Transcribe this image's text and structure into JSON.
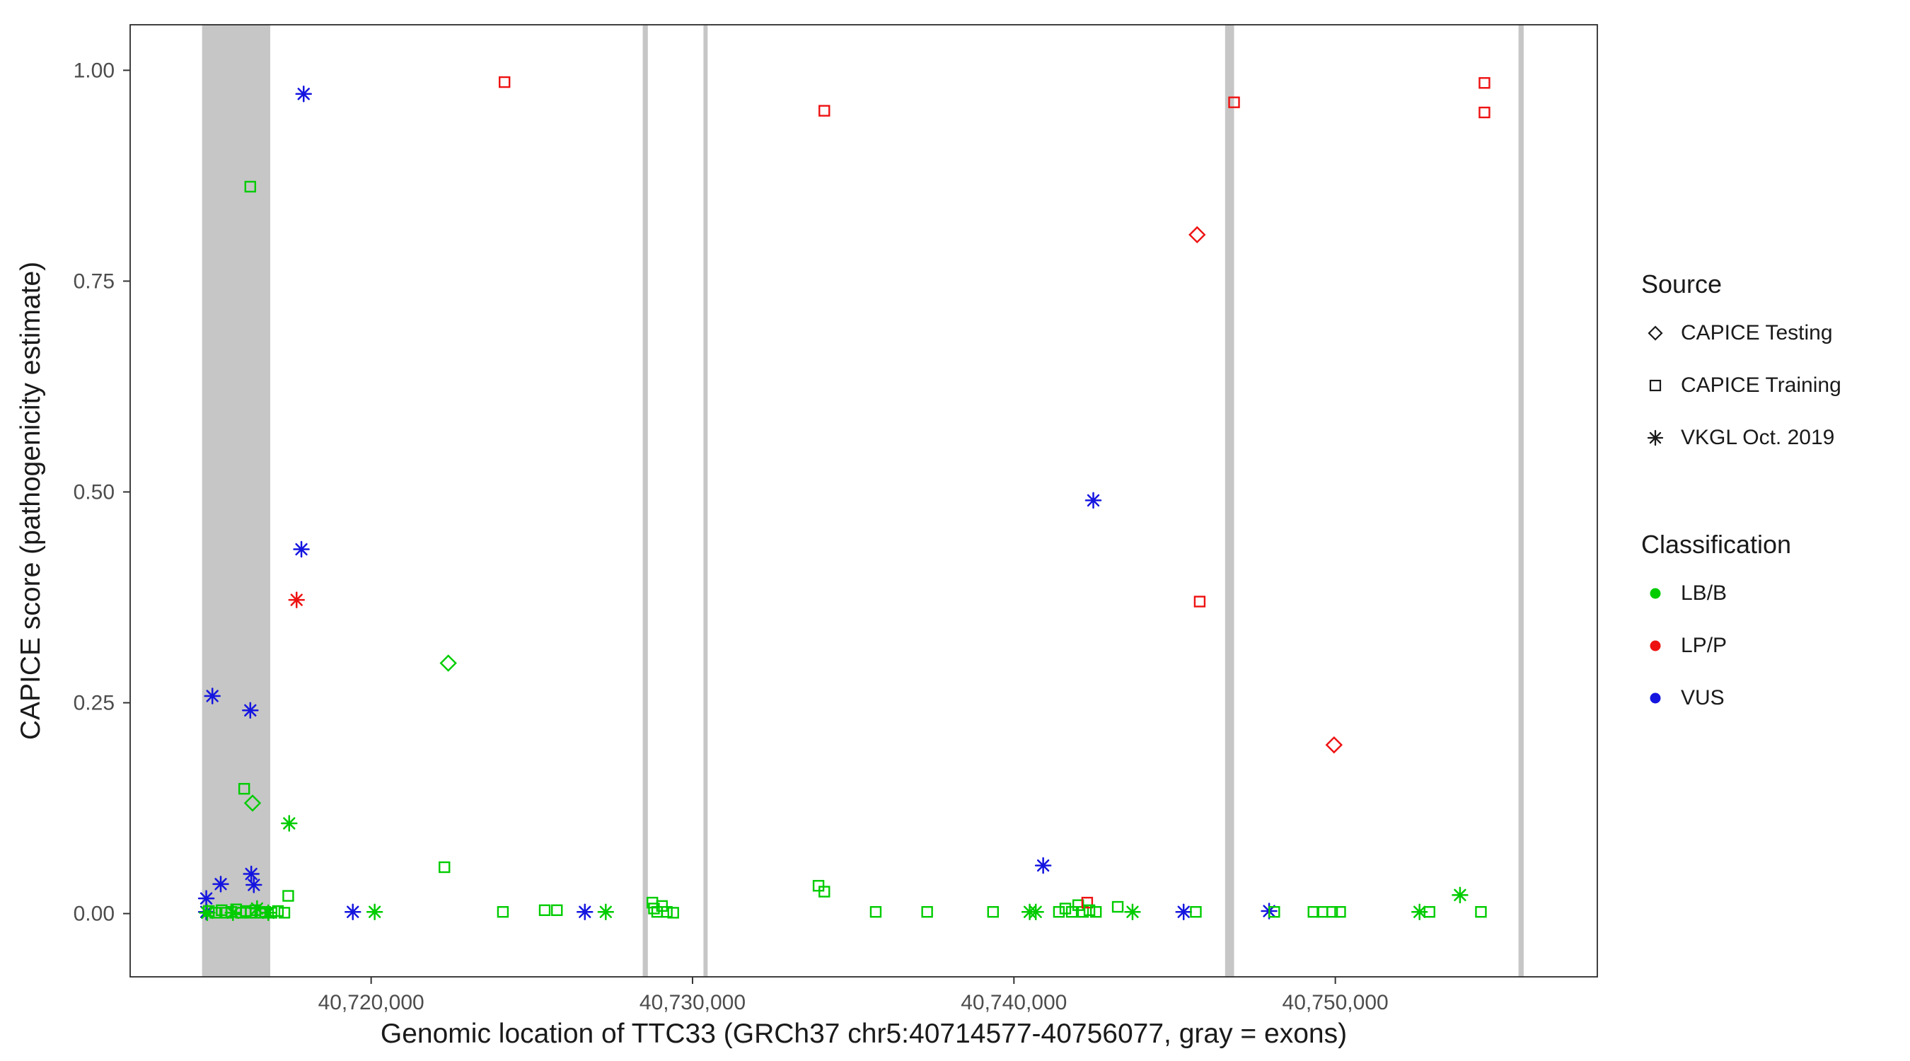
{
  "chart_data": {
    "type": "scatter",
    "title": "",
    "xlabel": "Genomic location of TTC33 (GRCh37 chr5:40714577-40756077, gray = exons)",
    "ylabel": "CAPICE score (pathogenicity estimate)",
    "x_domain": [
      40712502,
      40758152
    ],
    "y_domain": [
      -0.075,
      1.054
    ],
    "x_ticks": [
      {
        "v": 40720000,
        "label": "40,720,000"
      },
      {
        "v": 40730000,
        "label": "40,730,000"
      },
      {
        "v": 40740000,
        "label": "40,740,000"
      },
      {
        "v": 40750000,
        "label": "40,750,000"
      }
    ],
    "y_ticks": [
      {
        "v": 0.0,
        "label": "0.00"
      },
      {
        "v": 0.25,
        "label": "0.25"
      },
      {
        "v": 0.5,
        "label": "0.50"
      },
      {
        "v": 0.75,
        "label": "0.75"
      },
      {
        "v": 1.0,
        "label": "1.00"
      }
    ],
    "grid": false,
    "exon_color": "#c6c6c6",
    "exons_gray": [
      [
        40714740,
        40716860
      ],
      [
        40728450,
        40728610
      ],
      [
        40730340,
        40730470
      ],
      [
        40746570,
        40746850
      ],
      [
        40755700,
        40755860
      ]
    ],
    "classification_colors": {
      "LB/B": "#00cc00",
      "LP/P": "#ee1111",
      "VUS": "#1515e0"
    },
    "source_shapes": {
      "CAPICE Testing": "diamond",
      "CAPICE Training": "square",
      "VKGL Oct. 2019": "asterisk"
    },
    "legend": {
      "source_title": "Source",
      "source_items": [
        {
          "label": "CAPICE Testing",
          "shape": "diamond"
        },
        {
          "label": "CAPICE Training",
          "shape": "square"
        },
        {
          "label": "VKGL Oct. 2019",
          "shape": "asterisk"
        }
      ],
      "classification_title": "Classification",
      "classification_items": [
        {
          "label": "LB/B",
          "color": "#00cc00"
        },
        {
          "label": "LP/P",
          "color": "#ee1111"
        },
        {
          "label": "VUS",
          "color": "#1515e0"
        }
      ],
      "position": "right"
    },
    "points": [
      {
        "x": 40717900,
        "y": 0.972,
        "cls": "VUS",
        "src": "VKGL Oct. 2019"
      },
      {
        "x": 40724150,
        "y": 0.986,
        "cls": "LP/P",
        "src": "CAPICE Training"
      },
      {
        "x": 40734100,
        "y": 0.952,
        "cls": "LP/P",
        "src": "CAPICE Training"
      },
      {
        "x": 40746850,
        "y": 0.962,
        "cls": "LP/P",
        "src": "CAPICE Training"
      },
      {
        "x": 40754640,
        "y": 0.985,
        "cls": "LP/P",
        "src": "CAPICE Training"
      },
      {
        "x": 40754640,
        "y": 0.95,
        "cls": "LP/P",
        "src": "CAPICE Training"
      },
      {
        "x": 40745700,
        "y": 0.805,
        "cls": "LP/P",
        "src": "CAPICE Testing"
      },
      {
        "x": 40716240,
        "y": 0.862,
        "cls": "LB/B",
        "src": "CAPICE Training"
      },
      {
        "x": 40742470,
        "y": 0.49,
        "cls": "VUS",
        "src": "VKGL Oct. 2019"
      },
      {
        "x": 40717830,
        "y": 0.432,
        "cls": "VUS",
        "src": "VKGL Oct. 2019"
      },
      {
        "x": 40717680,
        "y": 0.372,
        "cls": "LP/P",
        "src": "VKGL Oct. 2019"
      },
      {
        "x": 40745780,
        "y": 0.37,
        "cls": "LP/P",
        "src": "CAPICE Training"
      },
      {
        "x": 40722400,
        "y": 0.297,
        "cls": "LB/B",
        "src": "CAPICE Testing"
      },
      {
        "x": 40715060,
        "y": 0.258,
        "cls": "VUS",
        "src": "VKGL Oct. 2019"
      },
      {
        "x": 40716240,
        "y": 0.241,
        "cls": "VUS",
        "src": "VKGL Oct. 2019"
      },
      {
        "x": 40749960,
        "y": 0.2,
        "cls": "LP/P",
        "src": "CAPICE Testing"
      },
      {
        "x": 40716050,
        "y": 0.148,
        "cls": "LB/B",
        "src": "CAPICE Training"
      },
      {
        "x": 40716310,
        "y": 0.131,
        "cls": "LB/B",
        "src": "CAPICE Testing"
      },
      {
        "x": 40717450,
        "y": 0.107,
        "cls": "LB/B",
        "src": "VKGL Oct. 2019"
      },
      {
        "x": 40740910,
        "y": 0.057,
        "cls": "VUS",
        "src": "VKGL Oct. 2019"
      },
      {
        "x": 40722280,
        "y": 0.055,
        "cls": "LB/B",
        "src": "CAPICE Training"
      },
      {
        "x": 40714870,
        "y": 0.018,
        "cls": "VUS",
        "src": "VKGL Oct. 2019"
      },
      {
        "x": 40714870,
        "y": 0.002,
        "cls": "VUS",
        "src": "VKGL Oct. 2019"
      },
      {
        "x": 40715320,
        "y": 0.035,
        "cls": "VUS",
        "src": "VKGL Oct. 2019"
      },
      {
        "x": 40716270,
        "y": 0.047,
        "cls": "VUS",
        "src": "VKGL Oct. 2019"
      },
      {
        "x": 40716350,
        "y": 0.034,
        "cls": "VUS",
        "src": "VKGL Oct. 2019"
      },
      {
        "x": 40717420,
        "y": 0.021,
        "cls": "LB/B",
        "src": "CAPICE Training"
      },
      {
        "x": 40714950,
        "y": 0.003,
        "cls": "LB/B",
        "src": "CAPICE Training"
      },
      {
        "x": 40715150,
        "y": 0.001,
        "cls": "LB/B",
        "src": "CAPICE Training"
      },
      {
        "x": 40715350,
        "y": 0.004,
        "cls": "LB/B",
        "src": "CAPICE Training"
      },
      {
        "x": 40715500,
        "y": 0.001,
        "cls": "LB/B",
        "src": "CAPICE Training"
      },
      {
        "x": 40715650,
        "y": 0.002,
        "cls": "LB/B",
        "src": "CAPICE Training"
      },
      {
        "x": 40715800,
        "y": 0.005,
        "cls": "LB/B",
        "src": "CAPICE Training"
      },
      {
        "x": 40715950,
        "y": 0.001,
        "cls": "LB/B",
        "src": "CAPICE Training"
      },
      {
        "x": 40716100,
        "y": 0.003,
        "cls": "LB/B",
        "src": "CAPICE Training"
      },
      {
        "x": 40716250,
        "y": 0.001,
        "cls": "LB/B",
        "src": "CAPICE Training"
      },
      {
        "x": 40716400,
        "y": 0.004,
        "cls": "LB/B",
        "src": "CAPICE Training"
      },
      {
        "x": 40716550,
        "y": 0.001,
        "cls": "LB/B",
        "src": "CAPICE Training"
      },
      {
        "x": 40716700,
        "y": 0.002,
        "cls": "LB/B",
        "src": "CAPICE Training"
      },
      {
        "x": 40716900,
        "y": 0.001,
        "cls": "LB/B",
        "src": "CAPICE Training"
      },
      {
        "x": 40717100,
        "y": 0.003,
        "cls": "LB/B",
        "src": "CAPICE Training"
      },
      {
        "x": 40717300,
        "y": 0.001,
        "cls": "LB/B",
        "src": "CAPICE Training"
      },
      {
        "x": 40714900,
        "y": 0.001,
        "cls": "LB/B",
        "src": "VKGL Oct. 2019"
      },
      {
        "x": 40715700,
        "y": 0.001,
        "cls": "LB/B",
        "src": "VKGL Oct. 2019"
      },
      {
        "x": 40716450,
        "y": 0.006,
        "cls": "LB/B",
        "src": "VKGL Oct. 2019"
      },
      {
        "x": 40716800,
        "y": 0.001,
        "cls": "LB/B",
        "src": "VKGL Oct. 2019"
      },
      {
        "x": 40719430,
        "y": 0.002,
        "cls": "VUS",
        "src": "VKGL Oct. 2019"
      },
      {
        "x": 40720110,
        "y": 0.002,
        "cls": "LB/B",
        "src": "VKGL Oct. 2019"
      },
      {
        "x": 40724100,
        "y": 0.002,
        "cls": "LB/B",
        "src": "CAPICE Training"
      },
      {
        "x": 40725400,
        "y": 0.004,
        "cls": "LB/B",
        "src": "CAPICE Training"
      },
      {
        "x": 40725780,
        "y": 0.004,
        "cls": "LB/B",
        "src": "CAPICE Training"
      },
      {
        "x": 40726650,
        "y": 0.002,
        "cls": "VUS",
        "src": "VKGL Oct. 2019"
      },
      {
        "x": 40727300,
        "y": 0.002,
        "cls": "LB/B",
        "src": "VKGL Oct. 2019"
      },
      {
        "x": 40728750,
        "y": 0.013,
        "cls": "LB/B",
        "src": "CAPICE Training"
      },
      {
        "x": 40728800,
        "y": 0.006,
        "cls": "LB/B",
        "src": "CAPICE Training"
      },
      {
        "x": 40728900,
        "y": 0.002,
        "cls": "LB/B",
        "src": "CAPICE Training"
      },
      {
        "x": 40729050,
        "y": 0.009,
        "cls": "LB/B",
        "src": "CAPICE Training"
      },
      {
        "x": 40729200,
        "y": 0.002,
        "cls": "LB/B",
        "src": "CAPICE Training"
      },
      {
        "x": 40729400,
        "y": 0.001,
        "cls": "LB/B",
        "src": "CAPICE Training"
      },
      {
        "x": 40733920,
        "y": 0.033,
        "cls": "LB/B",
        "src": "CAPICE Training"
      },
      {
        "x": 40734100,
        "y": 0.026,
        "cls": "LB/B",
        "src": "CAPICE Training"
      },
      {
        "x": 40735700,
        "y": 0.002,
        "cls": "LB/B",
        "src": "CAPICE Training"
      },
      {
        "x": 40737300,
        "y": 0.002,
        "cls": "LB/B",
        "src": "CAPICE Training"
      },
      {
        "x": 40739350,
        "y": 0.002,
        "cls": "LB/B",
        "src": "CAPICE Training"
      },
      {
        "x": 40740490,
        "y": 0.002,
        "cls": "LB/B",
        "src": "VKGL Oct. 2019"
      },
      {
        "x": 40740680,
        "y": 0.002,
        "cls": "LB/B",
        "src": "VKGL Oct. 2019"
      },
      {
        "x": 40741400,
        "y": 0.002,
        "cls": "LB/B",
        "src": "CAPICE Training"
      },
      {
        "x": 40741600,
        "y": 0.006,
        "cls": "LB/B",
        "src": "CAPICE Training"
      },
      {
        "x": 40741800,
        "y": 0.002,
        "cls": "LB/B",
        "src": "CAPICE Training"
      },
      {
        "x": 40742000,
        "y": 0.01,
        "cls": "LB/B",
        "src": "CAPICE Training"
      },
      {
        "x": 40742150,
        "y": 0.002,
        "cls": "LB/B",
        "src": "CAPICE Training"
      },
      {
        "x": 40742280,
        "y": 0.013,
        "cls": "LP/P",
        "src": "CAPICE Training"
      },
      {
        "x": 40742350,
        "y": 0.004,
        "cls": "LB/B",
        "src": "CAPICE Training"
      },
      {
        "x": 40742550,
        "y": 0.002,
        "cls": "LB/B",
        "src": "CAPICE Training"
      },
      {
        "x": 40743230,
        "y": 0.008,
        "cls": "LB/B",
        "src": "CAPICE Training"
      },
      {
        "x": 40743690,
        "y": 0.002,
        "cls": "LB/B",
        "src": "VKGL Oct. 2019"
      },
      {
        "x": 40745280,
        "y": 0.002,
        "cls": "VUS",
        "src": "VKGL Oct. 2019"
      },
      {
        "x": 40745660,
        "y": 0.002,
        "cls": "LB/B",
        "src": "CAPICE Training"
      },
      {
        "x": 40747940,
        "y": 0.003,
        "cls": "VUS",
        "src": "VKGL Oct. 2019"
      },
      {
        "x": 40748100,
        "y": 0.002,
        "cls": "LB/B",
        "src": "CAPICE Training"
      },
      {
        "x": 40749320,
        "y": 0.002,
        "cls": "LB/B",
        "src": "CAPICE Training"
      },
      {
        "x": 40749600,
        "y": 0.002,
        "cls": "LB/B",
        "src": "CAPICE Training"
      },
      {
        "x": 40749900,
        "y": 0.002,
        "cls": "LB/B",
        "src": "CAPICE Training"
      },
      {
        "x": 40750150,
        "y": 0.002,
        "cls": "LB/B",
        "src": "CAPICE Training"
      },
      {
        "x": 40752620,
        "y": 0.002,
        "cls": "LB/B",
        "src": "VKGL Oct. 2019"
      },
      {
        "x": 40752930,
        "y": 0.002,
        "cls": "LB/B",
        "src": "CAPICE Training"
      },
      {
        "x": 40753880,
        "y": 0.022,
        "cls": "LB/B",
        "src": "VKGL Oct. 2019"
      },
      {
        "x": 40754530,
        "y": 0.002,
        "cls": "LB/B",
        "src": "CAPICE Training"
      }
    ]
  }
}
